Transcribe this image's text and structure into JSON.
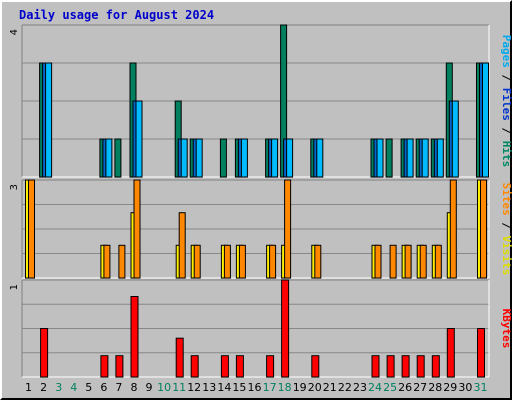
{
  "chart_data": {
    "type": "bar",
    "title": "Daily usage for August 2024",
    "days": [
      "1",
      "2",
      "3",
      "4",
      "5",
      "6",
      "7",
      "8",
      "9",
      "10",
      "11",
      "12",
      "13",
      "14",
      "15",
      "16",
      "17",
      "18",
      "19",
      "20",
      "21",
      "22",
      "23",
      "24",
      "25",
      "26",
      "27",
      "28",
      "29",
      "30",
      "31"
    ],
    "weekend_days": [
      3,
      4,
      10,
      11,
      17,
      18,
      24,
      25,
      31
    ],
    "panels": [
      {
        "id": "hits-panel",
        "ymax": 4,
        "ymax_label": "4",
        "label_parts": [
          {
            "text": "Pages",
            "color": "#00aaee"
          },
          {
            "text": " / ",
            "color": "#000000"
          },
          {
            "text": "Files",
            "color": "#0033cc"
          },
          {
            "text": " / ",
            "color": "#000000"
          },
          {
            "text": "Hits",
            "color": "#008866"
          }
        ],
        "series": [
          {
            "name": "Hits",
            "color": "#00805f",
            "values": [
              0,
              3,
              0,
              0,
              0,
              1,
              1,
              3,
              0,
              0,
              2,
              1,
              0,
              1,
              1,
              0,
              1,
              4,
              0,
              1,
              0,
              0,
              0,
              1,
              1,
              1,
              1,
              1,
              3,
              0,
              3
            ]
          },
          {
            "name": "Files",
            "color": "#0066cc",
            "values": [
              0,
              3,
              0,
              0,
              0,
              1,
              0,
              2,
              0,
              0,
              1,
              1,
              0,
              0,
              1,
              0,
              1,
              1,
              0,
              1,
              0,
              0,
              0,
              1,
              0,
              1,
              1,
              1,
              2,
              0,
              3
            ]
          },
          {
            "name": "Pages",
            "color": "#00bbff",
            "values": [
              0,
              3,
              0,
              0,
              0,
              1,
              0,
              2,
              0,
              0,
              1,
              1,
              0,
              0,
              1,
              0,
              1,
              1,
              0,
              1,
              0,
              0,
              0,
              1,
              0,
              1,
              1,
              1,
              2,
              0,
              3
            ]
          }
        ]
      },
      {
        "id": "visits-panel",
        "ymax": 3,
        "ymax_label": "3",
        "label_parts": [
          {
            "text": "Sites",
            "color": "#ff8800"
          },
          {
            "text": " / ",
            "color": "#000000"
          },
          {
            "text": "Visits",
            "color": "#dddd00"
          }
        ],
        "series": [
          {
            "name": "Visits",
            "color": "#ffee00",
            "values": [
              3,
              0,
              0,
              0,
              0,
              1,
              0,
              2,
              0,
              0,
              1,
              1,
              0,
              1,
              1,
              0,
              1,
              1,
              0,
              1,
              0,
              0,
              0,
              1,
              0,
              1,
              1,
              1,
              2,
              0,
              3
            ]
          },
          {
            "name": "Sites",
            "color": "#ff8800",
            "values": [
              3,
              0,
              0,
              0,
              0,
              1,
              1,
              3,
              0,
              0,
              2,
              1,
              0,
              1,
              1,
              0,
              1,
              3,
              0,
              1,
              0,
              0,
              0,
              1,
              1,
              1,
              1,
              1,
              3,
              0,
              3
            ]
          }
        ]
      },
      {
        "id": "kbytes-panel",
        "ymax": 1,
        "ymax_label": "1",
        "label_parts": [
          {
            "text": "KBytes",
            "color": "#ff0000"
          }
        ],
        "series": [
          {
            "name": "KBytes",
            "color": "#ff0000",
            "values": [
              0,
              0.5,
              0,
              0,
              0,
              0.22,
              0.22,
              0.83,
              0,
              0,
              0.4,
              0.22,
              0,
              0.22,
              0.22,
              0,
              0.22,
              1.0,
              0,
              0.22,
              0,
              0,
              0,
              0.22,
              0.22,
              0.22,
              0.22,
              0.22,
              0.5,
              0,
              0.5
            ]
          }
        ]
      }
    ]
  }
}
